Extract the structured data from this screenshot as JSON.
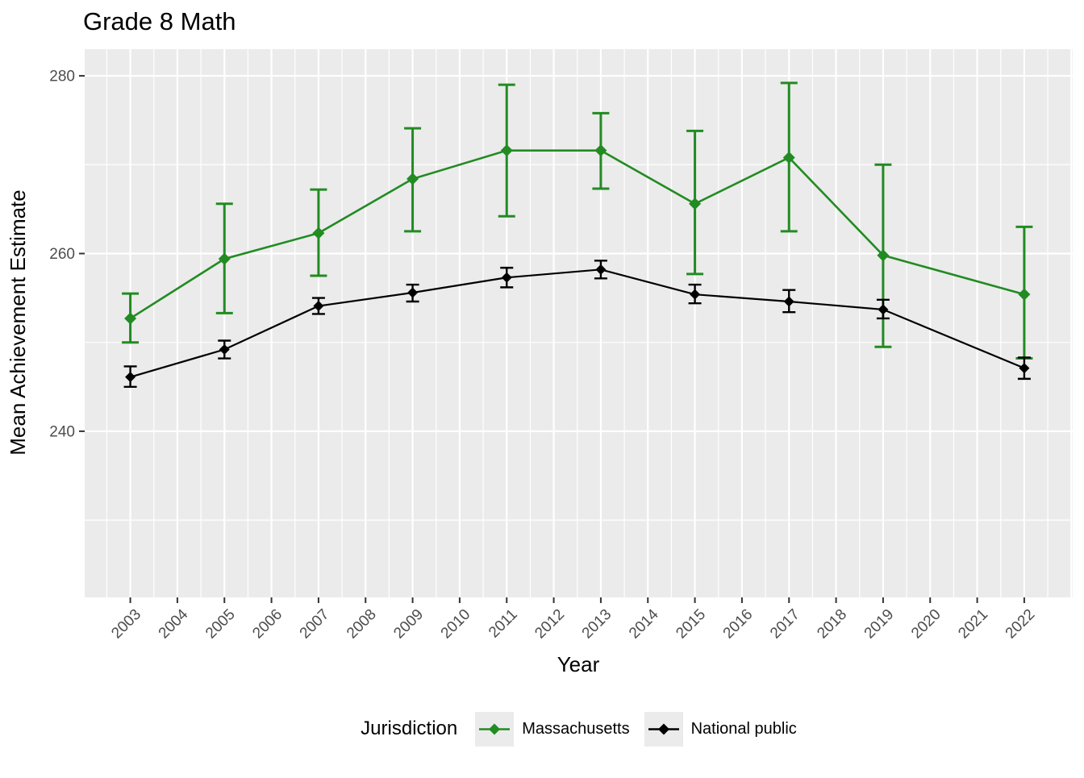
{
  "title": "Grade 8 Math",
  "axes": {
    "x_label": "Year",
    "y_label": "Mean Achievement Estimate"
  },
  "legend": {
    "title": "Jurisdiction",
    "items": [
      "Massachusetts",
      "National public"
    ]
  },
  "colors": {
    "massachusetts": "#228B22",
    "national_public": "#000000",
    "panel_background": "#EBEBEB",
    "gridline": "#FFFFFF",
    "tick_text": "#4D4D4D",
    "tick_mark": "#333333"
  },
  "chart_data": {
    "type": "line",
    "title": "Grade 8 Math",
    "xlabel": "Year",
    "ylabel": "Mean Achievement Estimate",
    "legend_title": "Jurisdiction",
    "legend_position": "bottom",
    "grid": true,
    "error_bars": true,
    "marker": "diamond",
    "panel_background": "#EBEBEB",
    "x_ticks": [
      2003,
      2004,
      2005,
      2006,
      2007,
      2008,
      2009,
      2010,
      2011,
      2012,
      2013,
      2014,
      2015,
      2016,
      2017,
      2018,
      2019,
      2020,
      2021,
      2022
    ],
    "y_ticks": [
      240,
      260,
      280
    ],
    "y_minor_ticks": [
      230,
      250,
      270
    ],
    "xlim": [
      2002.03,
      2023.03
    ],
    "ylim": [
      221.3,
      283.0
    ],
    "x": [
      2003,
      2005,
      2007,
      2009,
      2011,
      2013,
      2015,
      2017,
      2019,
      2022
    ],
    "series": [
      {
        "name": "Massachusetts",
        "color": "#228B22",
        "values": [
          252.7,
          259.4,
          262.3,
          268.4,
          271.6,
          271.6,
          265.6,
          270.8,
          259.8,
          255.4
        ],
        "ci_low": [
          250.0,
          253.3,
          257.5,
          262.5,
          264.2,
          267.3,
          257.7,
          262.5,
          249.5,
          248.2
        ],
        "ci_high": [
          255.5,
          265.6,
          267.2,
          274.1,
          279.0,
          275.8,
          273.8,
          279.2,
          270.0,
          263.0
        ]
      },
      {
        "name": "National public",
        "color": "#000000",
        "values": [
          246.1,
          249.2,
          254.1,
          255.6,
          257.3,
          258.2,
          255.4,
          254.6,
          253.7,
          247.1
        ],
        "ci_low": [
          245.0,
          248.2,
          253.2,
          254.6,
          256.2,
          257.2,
          254.4,
          253.4,
          252.7,
          245.9
        ],
        "ci_high": [
          247.3,
          250.2,
          255.0,
          256.5,
          258.4,
          259.2,
          256.5,
          255.9,
          254.8,
          248.3
        ]
      }
    ]
  }
}
